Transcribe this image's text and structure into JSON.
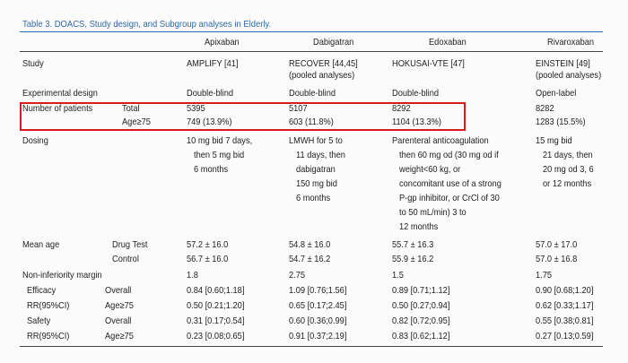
{
  "caption": "Table 3. DOACS, Study design, and Subgroup analyses in Elderly.",
  "headers": {
    "apixaban": "Apixaban",
    "dabigatran": "Dabigatran",
    "edoxaban": "Edoxaban",
    "rivaroxaban": "Rivaroxaban"
  },
  "study": {
    "label": "Study",
    "apixaban": "AMPLIFY [41]",
    "dabigatran": [
      "RECOVER [44,45]",
      "(pooled analyses)"
    ],
    "edoxaban": "HOKUSAI-VTE [47]",
    "rivaroxaban": [
      "EINSTEIN [49]",
      "(pooled analyses)"
    ]
  },
  "design": {
    "label": "Experimental design",
    "apixaban": "Double-blind",
    "dabigatran": "Double-blind",
    "edoxaban": "Double-blind",
    "rivaroxaban": "Open-label"
  },
  "patients": {
    "label": "Number of patients",
    "total_label": "Total",
    "age_label": "Age≥75",
    "total": {
      "apixaban": "5395",
      "dabigatran": "5107",
      "edoxaban": "8292",
      "rivaroxaban": "8282"
    },
    "age": {
      "apixaban": "749 (13.9%)",
      "dabigatran": "603 (11.8%)",
      "edoxaban": "1104 (13.3%)",
      "rivaroxaban": "1283 (15.5%)"
    }
  },
  "dosing": {
    "label": "Dosing",
    "apixaban": [
      "10 mg bid 7 days,",
      "then 5 mg bid",
      "6 months"
    ],
    "dabigatran": [
      "LMWH for 5 to",
      "11 days, then",
      "dabigatran",
      "150 mg bid",
      "6 months"
    ],
    "edoxaban": [
      "Parenteral anticoagulation",
      "then 60 mg od (30 mg od if",
      "weight<60 kg, or",
      "concomitant use of a strong",
      "P-gp inhibitor, or CrCl of 30",
      "to 50 mL/min) 3 to",
      "12 months"
    ],
    "rivaroxaban": [
      "15 mg bid",
      "21 days, then",
      "20 mg od 3, 6",
      "or 12 months"
    ]
  },
  "mean_age": {
    "label": "Mean age",
    "drug_label": "Drug Test",
    "control_label": "Control",
    "drug": {
      "apixaban": "57.2 ± 16.0",
      "dabigatran": "54.8 ± 16.0",
      "edoxaban": "55.7 ± 16.3",
      "rivaroxaban": "57.0 ± 17.0"
    },
    "control": {
      "apixaban": "56.7 ± 16.0",
      "dabigatran": "54.7 ± 16.2",
      "edoxaban": "55.9 ± 16.2",
      "rivaroxaban": "57.0 ± 16.8"
    }
  },
  "margin": {
    "label": "Non-inferiority margin",
    "apixaban": "1.8",
    "dabigatran": "2.75",
    "edoxaban": "1.5",
    "rivaroxaban": "1.75"
  },
  "efficacy": {
    "label": "Efficacy",
    "sublabel": "RR(95%CI)",
    "overall_label": "Overall",
    "age_label": "Age≥75",
    "overall": {
      "apixaban": "0.84 [0.60;1.18]",
      "dabigatran": "1.09 [0.76;1.56]",
      "edoxaban": "0.89 [0.71;1.12]",
      "rivaroxaban": "0.90 [0.68;1.20]"
    },
    "age": {
      "apixaban": "0.50 [0.21;1.20]",
      "dabigatran": "0.65 [0.17;2.45]",
      "edoxaban": "0.50 [0.27;0.94]",
      "rivaroxaban": "0.62 [0.33;1.17]"
    }
  },
  "safety": {
    "label": "Safety",
    "sublabel": "RR(95%CI)",
    "overall_label": "Overall",
    "age_label": "Age≥75",
    "overall": {
      "apixaban": "0.31 [0.17;0.54]",
      "dabigatran": "0.60 [0.36;0.99]",
      "edoxaban": "0.82 [0.72;0.95]",
      "rivaroxaban": "0.55 [0.38;0.81]"
    },
    "age": {
      "apixaban": "0.23 [0.08;0.65]",
      "dabigatran": "0.91 [0.37;2.19]",
      "edoxaban": "0.83 [0.62;1.12]",
      "rivaroxaban": "0.27 [0.13;0.59]"
    }
  },
  "colors": {
    "caption": "#2d6aa6",
    "highlight_box": "#d81b1b",
    "rules": "#444444"
  }
}
